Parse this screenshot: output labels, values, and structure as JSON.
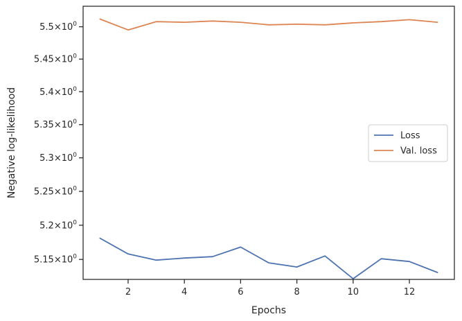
{
  "chart_data": {
    "type": "line",
    "xlabel": "Epochs",
    "ylabel": "Negative log-likelihood",
    "x": [
      1,
      2,
      3,
      4,
      5,
      6,
      7,
      8,
      9,
      10,
      11,
      12,
      13
    ],
    "xlim": [
      0.4,
      13.6
    ],
    "ylim": [
      5.121,
      5.532
    ],
    "log_scale_y": true,
    "x_ticks": [
      {
        "value": 2,
        "label": "2"
      },
      {
        "value": 4,
        "label": "4"
      },
      {
        "value": 6,
        "label": "6"
      },
      {
        "value": 8,
        "label": "8"
      },
      {
        "value": 10,
        "label": "10"
      },
      {
        "value": 12,
        "label": "12"
      }
    ],
    "y_ticks": [
      {
        "value": 5.15,
        "mantissa": "5.15",
        "sup": "0"
      },
      {
        "value": 5.2,
        "mantissa": "5.2",
        "sup": "0"
      },
      {
        "value": 5.25,
        "mantissa": "5.25",
        "sup": "0"
      },
      {
        "value": 5.3,
        "mantissa": "5.3",
        "sup": "0"
      },
      {
        "value": 5.35,
        "mantissa": "5.35",
        "sup": "0"
      },
      {
        "value": 5.4,
        "mantissa": "5.4",
        "sup": "0"
      },
      {
        "value": 5.45,
        "mantissa": "5.45",
        "sup": "0"
      },
      {
        "value": 5.5,
        "mantissa": "5.5",
        "sup": "0"
      }
    ],
    "y_tick_multiplier": "×10",
    "series": [
      {
        "name": "Loss",
        "color": "#4c72b0",
        "values": [
          5.181,
          5.158,
          5.149,
          5.152,
          5.154,
          5.168,
          5.145,
          5.139,
          5.155,
          5.122,
          5.151,
          5.147,
          5.131
        ]
      },
      {
        "name": "Val. loss",
        "color": "#dd8452",
        "values": [
          5.512,
          5.495,
          5.508,
          5.507,
          5.509,
          5.507,
          5.503,
          5.504,
          5.503,
          5.506,
          5.508,
          5.511,
          5.507
        ]
      }
    ],
    "legend_position": "center-right",
    "grid": false
  }
}
